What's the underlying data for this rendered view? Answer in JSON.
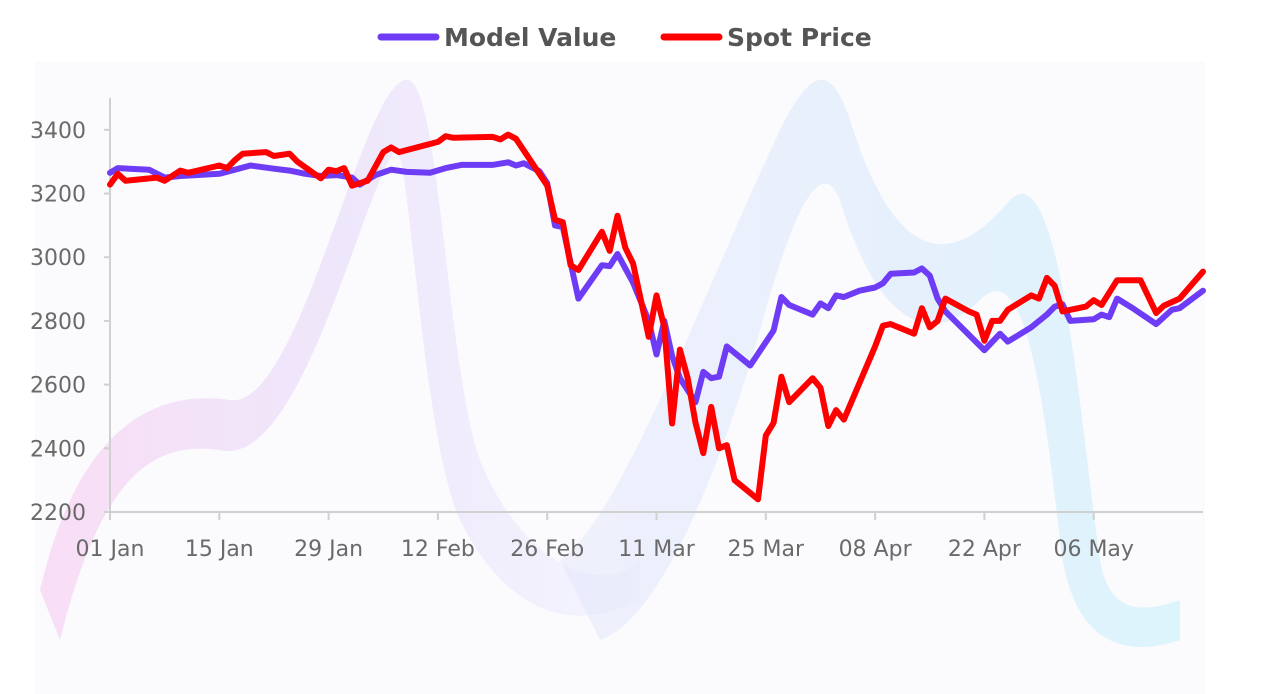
{
  "chart_data": {
    "type": "line",
    "title": "",
    "xlabel": "",
    "ylabel": "",
    "legend_position": "top-center",
    "grid": false,
    "ylim": [
      2200,
      3500
    ],
    "yticks": [
      2200,
      2400,
      2600,
      2800,
      3000,
      3200,
      3400
    ],
    "x_range": [
      "2024-01-01",
      "2024-05-20"
    ],
    "xticks": [
      {
        "date": "2024-01-01",
        "label": "01 Jan"
      },
      {
        "date": "2024-01-15",
        "label": "15 Jan"
      },
      {
        "date": "2024-01-29",
        "label": "29 Jan"
      },
      {
        "date": "2024-02-12",
        "label": "12 Feb"
      },
      {
        "date": "2024-02-26",
        "label": "26 Feb"
      },
      {
        "date": "2024-03-11",
        "label": "11 Mar"
      },
      {
        "date": "2024-03-25",
        "label": "25 Mar"
      },
      {
        "date": "2024-04-08",
        "label": "08 Apr"
      },
      {
        "date": "2024-04-22",
        "label": "22 Apr"
      },
      {
        "date": "2024-05-06",
        "label": "06 May"
      }
    ],
    "series": [
      {
        "name": "Model Value",
        "color": "#6f3cf5",
        "points": [
          [
            "2024-01-01",
            3265
          ],
          [
            "2024-01-02",
            3280
          ],
          [
            "2024-01-06",
            3275
          ],
          [
            "2024-01-08",
            3250
          ],
          [
            "2024-01-10",
            3255
          ],
          [
            "2024-01-12",
            3258
          ],
          [
            "2024-01-15",
            3262
          ],
          [
            "2024-01-17",
            3275
          ],
          [
            "2024-01-19",
            3288
          ],
          [
            "2024-01-22",
            3278
          ],
          [
            "2024-01-24",
            3272
          ],
          [
            "2024-01-26",
            3262
          ],
          [
            "2024-01-28",
            3255
          ],
          [
            "2024-01-30",
            3258
          ],
          [
            "2024-02-01",
            3250
          ],
          [
            "2024-02-02",
            3228
          ],
          [
            "2024-02-04",
            3258
          ],
          [
            "2024-02-06",
            3275
          ],
          [
            "2024-02-08",
            3268
          ],
          [
            "2024-02-11",
            3265
          ],
          [
            "2024-02-13",
            3280
          ],
          [
            "2024-02-15",
            3290
          ],
          [
            "2024-02-19",
            3290
          ],
          [
            "2024-02-21",
            3298
          ],
          [
            "2024-02-22",
            3288
          ],
          [
            "2024-02-23",
            3295
          ],
          [
            "2024-02-25",
            3270
          ],
          [
            "2024-02-26",
            3232
          ],
          [
            "2024-02-27",
            3100
          ],
          [
            "2024-02-28",
            3095
          ],
          [
            "2024-03-01",
            2870
          ],
          [
            "2024-03-04",
            2975
          ],
          [
            "2024-03-05",
            2972
          ],
          [
            "2024-03-06",
            3010
          ],
          [
            "2024-03-08",
            2920
          ],
          [
            "2024-03-10",
            2800
          ],
          [
            "2024-03-11",
            2695
          ],
          [
            "2024-03-12",
            2800
          ],
          [
            "2024-03-13",
            2690
          ],
          [
            "2024-03-14",
            2620
          ],
          [
            "2024-03-16",
            2545
          ],
          [
            "2024-03-17",
            2640
          ],
          [
            "2024-03-18",
            2620
          ],
          [
            "2024-03-19",
            2625
          ],
          [
            "2024-03-20",
            2720
          ],
          [
            "2024-03-23",
            2660
          ],
          [
            "2024-03-26",
            2770
          ],
          [
            "2024-03-27",
            2875
          ],
          [
            "2024-03-28",
            2850
          ],
          [
            "2024-03-31",
            2820
          ],
          [
            "2024-04-01",
            2855
          ],
          [
            "2024-04-02",
            2840
          ],
          [
            "2024-04-03",
            2880
          ],
          [
            "2024-04-04",
            2875
          ],
          [
            "2024-04-06",
            2895
          ],
          [
            "2024-04-08",
            2905
          ],
          [
            "2024-04-09",
            2918
          ],
          [
            "2024-04-10",
            2948
          ],
          [
            "2024-04-13",
            2952
          ],
          [
            "2024-04-14",
            2965
          ],
          [
            "2024-04-15",
            2942
          ],
          [
            "2024-04-16",
            2870
          ],
          [
            "2024-04-17",
            2830
          ],
          [
            "2024-04-22",
            2708
          ],
          [
            "2024-04-24",
            2760
          ],
          [
            "2024-04-25",
            2735
          ],
          [
            "2024-04-28",
            2780
          ],
          [
            "2024-04-30",
            2820
          ],
          [
            "2024-05-01",
            2845
          ],
          [
            "2024-05-02",
            2852
          ],
          [
            "2024-05-03",
            2800
          ],
          [
            "2024-05-06",
            2805
          ],
          [
            "2024-05-07",
            2820
          ],
          [
            "2024-05-08",
            2812
          ],
          [
            "2024-05-09",
            2870
          ],
          [
            "2024-05-11",
            2840
          ],
          [
            "2024-05-14",
            2790
          ],
          [
            "2024-05-16",
            2835
          ],
          [
            "2024-05-17",
            2840
          ],
          [
            "2024-05-20",
            2895
          ]
        ]
      },
      {
        "name": "Spot Price",
        "color": "#ff0000",
        "points": [
          [
            "2024-01-01",
            3228
          ],
          [
            "2024-01-02",
            3262
          ],
          [
            "2024-01-03",
            3240
          ],
          [
            "2024-01-07",
            3250
          ],
          [
            "2024-01-08",
            3240
          ],
          [
            "2024-01-10",
            3272
          ],
          [
            "2024-01-11",
            3265
          ],
          [
            "2024-01-15",
            3288
          ],
          [
            "2024-01-16",
            3280
          ],
          [
            "2024-01-17",
            3305
          ],
          [
            "2024-01-18",
            3325
          ],
          [
            "2024-01-21",
            3330
          ],
          [
            "2024-01-22",
            3318
          ],
          [
            "2024-01-24",
            3325
          ],
          [
            "2024-01-25",
            3300
          ],
          [
            "2024-01-28",
            3248
          ],
          [
            "2024-01-29",
            3275
          ],
          [
            "2024-01-30",
            3270
          ],
          [
            "2024-01-31",
            3280
          ],
          [
            "2024-02-01",
            3225
          ],
          [
            "2024-02-03",
            3240
          ],
          [
            "2024-02-05",
            3330
          ],
          [
            "2024-02-06",
            3345
          ],
          [
            "2024-02-07",
            3330
          ],
          [
            "2024-02-12",
            3362
          ],
          [
            "2024-02-13",
            3380
          ],
          [
            "2024-02-14",
            3375
          ],
          [
            "2024-02-19",
            3378
          ],
          [
            "2024-02-20",
            3370
          ],
          [
            "2024-02-21",
            3385
          ],
          [
            "2024-02-22",
            3372
          ],
          [
            "2024-02-26",
            3225
          ],
          [
            "2024-02-27",
            3118
          ],
          [
            "2024-02-28",
            3110
          ],
          [
            "2024-02-29",
            2975
          ],
          [
            "2024-03-01",
            2960
          ],
          [
            "2024-03-04",
            3080
          ],
          [
            "2024-03-05",
            3020
          ],
          [
            "2024-03-06",
            3130
          ],
          [
            "2024-03-07",
            3030
          ],
          [
            "2024-03-08",
            2980
          ],
          [
            "2024-03-10",
            2750
          ],
          [
            "2024-03-11",
            2880
          ],
          [
            "2024-03-12",
            2780
          ],
          [
            "2024-03-13",
            2478
          ],
          [
            "2024-03-14",
            2710
          ],
          [
            "2024-03-15",
            2620
          ],
          [
            "2024-03-16",
            2480
          ],
          [
            "2024-03-17",
            2385
          ],
          [
            "2024-03-18",
            2530
          ],
          [
            "2024-03-19",
            2400
          ],
          [
            "2024-03-20",
            2410
          ],
          [
            "2024-03-21",
            2300
          ],
          [
            "2024-03-24",
            2240
          ],
          [
            "2024-03-25",
            2440
          ],
          [
            "2024-03-26",
            2480
          ],
          [
            "2024-03-27",
            2625
          ],
          [
            "2024-03-28",
            2545
          ],
          [
            "2024-03-31",
            2620
          ],
          [
            "2024-04-01",
            2590
          ],
          [
            "2024-04-02",
            2470
          ],
          [
            "2024-04-03",
            2520
          ],
          [
            "2024-04-04",
            2490
          ],
          [
            "2024-04-08",
            2720
          ],
          [
            "2024-04-09",
            2785
          ],
          [
            "2024-04-10",
            2790
          ],
          [
            "2024-04-13",
            2760
          ],
          [
            "2024-04-14",
            2840
          ],
          [
            "2024-04-15",
            2780
          ],
          [
            "2024-04-16",
            2800
          ],
          [
            "2024-04-17",
            2870
          ],
          [
            "2024-04-20",
            2830
          ],
          [
            "2024-04-21",
            2820
          ],
          [
            "2024-04-22",
            2738
          ],
          [
            "2024-04-23",
            2800
          ],
          [
            "2024-04-24",
            2800
          ],
          [
            "2024-04-25",
            2835
          ],
          [
            "2024-04-28",
            2880
          ],
          [
            "2024-04-29",
            2870
          ],
          [
            "2024-04-30",
            2935
          ],
          [
            "2024-05-01",
            2910
          ],
          [
            "2024-05-02",
            2830
          ],
          [
            "2024-05-05",
            2845
          ],
          [
            "2024-05-06",
            2865
          ],
          [
            "2024-05-07",
            2850
          ],
          [
            "2024-05-09",
            2928
          ],
          [
            "2024-05-12",
            2928
          ],
          [
            "2024-05-14",
            2825
          ],
          [
            "2024-05-15",
            2848
          ],
          [
            "2024-05-17",
            2870
          ],
          [
            "2024-05-20",
            2955
          ]
        ]
      }
    ]
  }
}
